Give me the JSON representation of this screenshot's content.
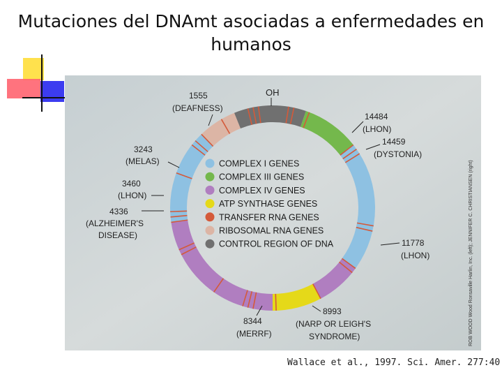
{
  "slide": {
    "title_line1": "Mutaciones del DNAmt asociadas a enfermedades en",
    "title_line2": "humanos",
    "citation": "Wallace et al., 1997. Sci. Amer. 277:40"
  },
  "diagram": {
    "origin_label": "OH",
    "credit": "ROB WOOD Wood Ronsaville Harlin, Inc. (left); JENNIFER C. CHRISTIANSEN (right)",
    "legend": [
      {
        "label": "COMPLEX I GENES",
        "color": "#8ec1e2"
      },
      {
        "label": "COMPLEX III GENES",
        "color": "#74b84c"
      },
      {
        "label": "COMPLEX IV GENES",
        "color": "#b07ec0"
      },
      {
        "label": "ATP SYNTHASE GENES",
        "color": "#e5d919"
      },
      {
        "label": "TRANSFER RNA GENES",
        "color": "#d45a3a"
      },
      {
        "label": "RIBOSOMAL RNA GENES",
        "color": "#dcb5a5"
      },
      {
        "label": "CONTROL REGION OF DNA",
        "color": "#707070"
      }
    ],
    "annotations": [
      {
        "number": "1555",
        "disease": "(DEAFNESS)"
      },
      {
        "number": "3243",
        "disease": "(MELAS)"
      },
      {
        "number": "3460",
        "disease": "(LHON)"
      },
      {
        "number": "4336",
        "disease": "(ALZHEIMER'S",
        "disease2": "DISEASE)"
      },
      {
        "number": "14484",
        "disease": "(LHON)"
      },
      {
        "number": "14459",
        "disease": "(DYSTONIA)"
      },
      {
        "number": "11778",
        "disease": "(LHON)"
      },
      {
        "number": "8993",
        "disease": "(NARP OR LEIGH'S",
        "disease2": "SYNDROME)"
      },
      {
        "number": "8344",
        "disease": "(MERRF)"
      }
    ]
  }
}
